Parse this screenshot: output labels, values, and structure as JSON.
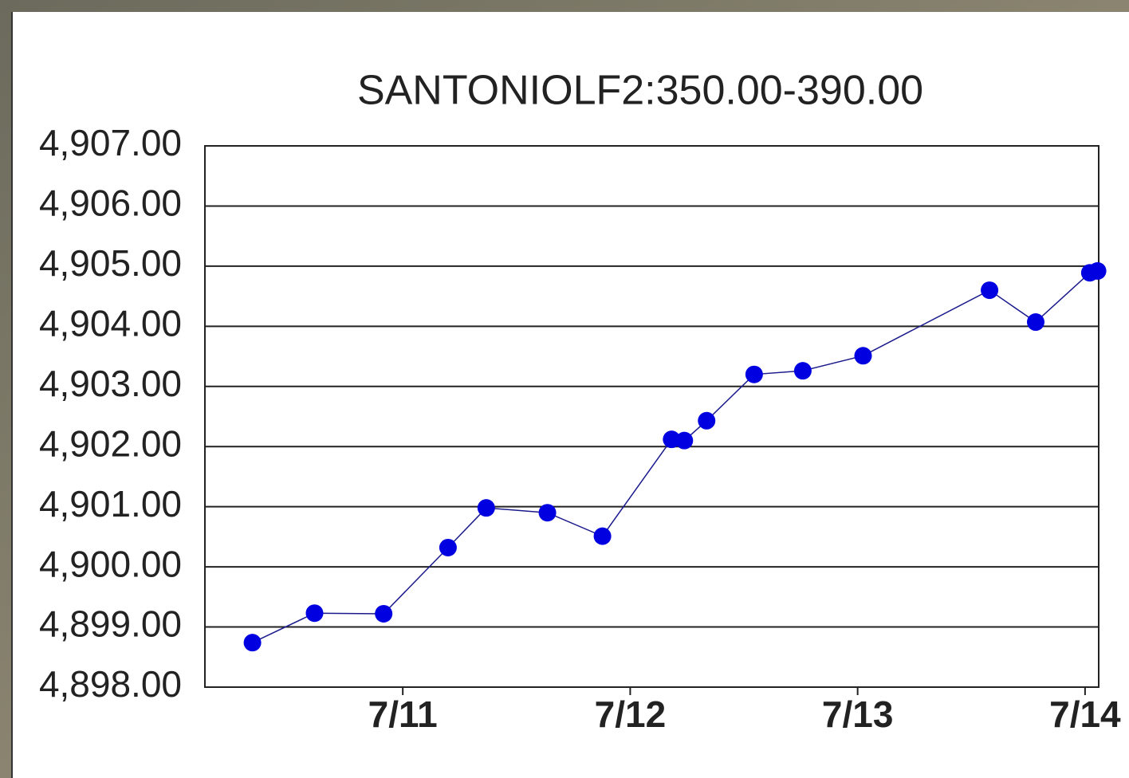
{
  "chart_data": {
    "type": "line",
    "title": "SANTONIOLF2:350.00-390.00",
    "x": [
      10.339,
      10.612,
      10.916,
      11.199,
      11.367,
      11.636,
      11.878,
      12.182,
      12.238,
      12.336,
      12.545,
      12.759,
      13.024,
      13.58,
      13.783,
      14.021,
      14.055
    ],
    "series": [
      {
        "color": "#0000e0",
        "values": [
          4898.74,
          4899.23,
          4899.22,
          4900.32,
          4900.98,
          4900.9,
          4900.51,
          4902.12,
          4902.1,
          4902.43,
          4903.2,
          4903.26,
          4903.51,
          4904.6,
          4904.07,
          4904.89,
          4904.92
        ]
      }
    ],
    "xlim": [
      10.13,
      14.06
    ],
    "xticks": [
      {
        "value": 11,
        "label": "7/11"
      },
      {
        "value": 12,
        "label": "7/12"
      },
      {
        "value": 13,
        "label": "7/13"
      },
      {
        "value": 14,
        "label": "7/14"
      }
    ],
    "ylim": [
      4898,
      4907
    ],
    "yticks": [
      {
        "value": 4898,
        "label": "4,898.00"
      },
      {
        "value": 4899,
        "label": "4,899.00"
      },
      {
        "value": 4900,
        "label": "4,900.00"
      },
      {
        "value": 4901,
        "label": "4,901.00"
      },
      {
        "value": 4902,
        "label": "4,902.00"
      },
      {
        "value": 4903,
        "label": "4,903.00"
      },
      {
        "value": 4904,
        "label": "4,904.00"
      },
      {
        "value": 4905,
        "label": "4,905.00"
      },
      {
        "value": 4906,
        "label": "4,906.00"
      },
      {
        "value": 4907,
        "label": "4,907.00"
      }
    ],
    "grid": true
  }
}
